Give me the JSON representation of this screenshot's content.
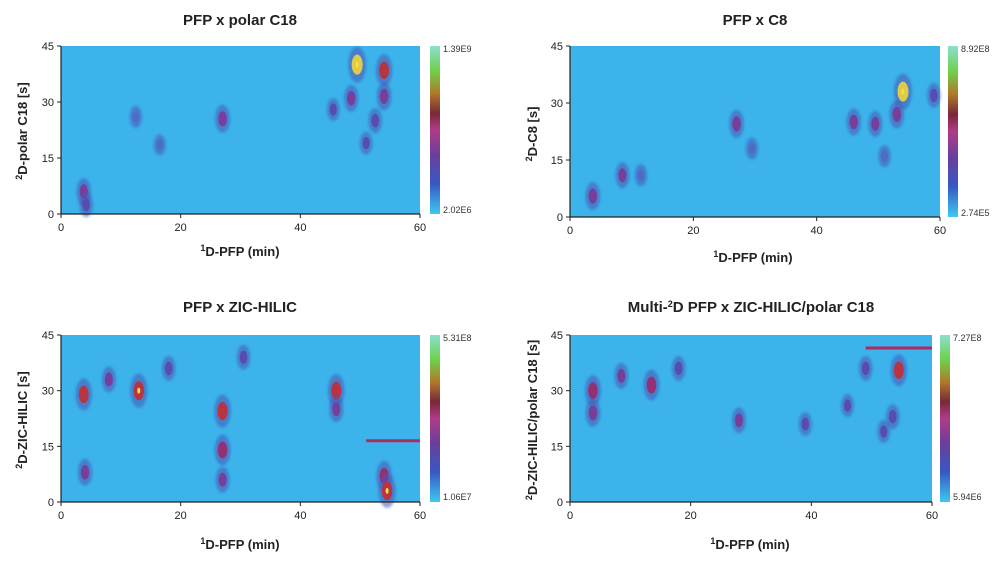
{
  "chart_data": [
    {
      "type": "heatmap",
      "title": "PFP x polar C18",
      "xlabel_sup": "1",
      "xlabel": "D-PFP (min)",
      "ylabel_sup": "2",
      "ylabel": "D-polar C18 [s]",
      "xlim": [
        0,
        60
      ],
      "ylim": [
        0,
        45
      ],
      "xticks": [
        "0",
        "20",
        "40",
        "60"
      ],
      "yticks": [
        "0",
        "15",
        "30",
        "45"
      ],
      "colorbar": {
        "max": "1.39E9",
        "min": "2.02E6"
      },
      "hot_bands": [],
      "peaks": [
        {
          "x": 3.8,
          "y": 6,
          "i": 0.55
        },
        {
          "x": 4.2,
          "y": 2.5,
          "i": 0.45
        },
        {
          "x": 12.5,
          "y": 26,
          "i": 0.3
        },
        {
          "x": 16.5,
          "y": 18.5,
          "i": 0.25
        },
        {
          "x": 27,
          "y": 25.5,
          "i": 0.6
        },
        {
          "x": 45.5,
          "y": 28,
          "i": 0.35
        },
        {
          "x": 48.5,
          "y": 31,
          "i": 0.55
        },
        {
          "x": 49.5,
          "y": 40,
          "i": 1.0
        },
        {
          "x": 54,
          "y": 38.5,
          "i": 0.8
        },
        {
          "x": 54,
          "y": 31.5,
          "i": 0.6
        },
        {
          "x": 52.5,
          "y": 25,
          "i": 0.45
        },
        {
          "x": 51,
          "y": 19,
          "i": 0.35
        }
      ]
    },
    {
      "type": "heatmap",
      "title": "PFP x C8",
      "xlabel_sup": "1",
      "xlabel": "D-PFP (min)",
      "ylabel_sup": "2",
      "ylabel": "D-C8 [s]",
      "xlim": [
        0,
        60
      ],
      "ylim": [
        0,
        45
      ],
      "xticks": [
        "0",
        "20",
        "40",
        "60"
      ],
      "yticks": [
        "0",
        "15",
        "30",
        "45"
      ],
      "colorbar": {
        "max": "8.92E8",
        "min": "2.74E5"
      },
      "hot_bands": [],
      "peaks": [
        {
          "x": 3.7,
          "y": 5.5,
          "i": 0.6
        },
        {
          "x": 8.5,
          "y": 11,
          "i": 0.5
        },
        {
          "x": 11.5,
          "y": 11,
          "i": 0.3
        },
        {
          "x": 27,
          "y": 24.5,
          "i": 0.6
        },
        {
          "x": 29.5,
          "y": 18,
          "i": 0.3
        },
        {
          "x": 46,
          "y": 25,
          "i": 0.55
        },
        {
          "x": 49.5,
          "y": 24.5,
          "i": 0.5
        },
        {
          "x": 54,
          "y": 33,
          "i": 1.0
        },
        {
          "x": 53,
          "y": 27,
          "i": 0.6
        },
        {
          "x": 59,
          "y": 32,
          "i": 0.45
        },
        {
          "x": 51,
          "y": 16,
          "i": 0.3
        }
      ]
    },
    {
      "type": "heatmap",
      "title": "PFP x ZIC-HILIC",
      "xlabel_sup": "1",
      "xlabel": "D-PFP (min)",
      "ylabel_sup": "2",
      "ylabel": "D-ZIC-HILIC [s]",
      "xlim": [
        0,
        60
      ],
      "ylim": [
        0,
        45
      ],
      "xticks": [
        "0",
        "20",
        "40",
        "60"
      ],
      "yticks": [
        "0",
        "15",
        "30",
        "45"
      ],
      "colorbar": {
        "max": "5.31E8",
        "min": "1.06E7"
      },
      "hot_bands": [
        {
          "x0": 51,
          "x1": 60,
          "y": 16.5
        }
      ],
      "peaks": [
        {
          "x": 3.8,
          "y": 29,
          "i": 0.8
        },
        {
          "x": 4,
          "y": 8,
          "i": 0.55
        },
        {
          "x": 8,
          "y": 33,
          "i": 0.5
        },
        {
          "x": 13,
          "y": 30,
          "i": 0.9
        },
        {
          "x": 18,
          "y": 36,
          "i": 0.45
        },
        {
          "x": 27,
          "y": 24.5,
          "i": 0.85
        },
        {
          "x": 27,
          "y": 14,
          "i": 0.75
        },
        {
          "x": 27,
          "y": 6,
          "i": 0.5
        },
        {
          "x": 30.5,
          "y": 39,
          "i": 0.45
        },
        {
          "x": 46,
          "y": 30,
          "i": 0.85
        },
        {
          "x": 46,
          "y": 25,
          "i": 0.5
        },
        {
          "x": 54,
          "y": 7,
          "i": 0.7
        },
        {
          "x": 54.5,
          "y": 3,
          "i": 0.9
        }
      ]
    },
    {
      "type": "heatmap",
      "title": "Multi-",
      "title_sup": "2",
      "title_tail": "D PFP x ZIC-HILIC/polar C18",
      "xlabel_sup": "1",
      "xlabel": "D-PFP (min)",
      "ylabel_sup": "2",
      "ylabel": "D-ZIC-HILIC/polar C18 [s]",
      "xlim": [
        0,
        60
      ],
      "ylim": [
        0,
        45
      ],
      "xticks": [
        "0",
        "20",
        "40",
        "60"
      ],
      "yticks": [
        "0",
        "15",
        "30",
        "45"
      ],
      "colorbar": {
        "max": "7.27E8",
        "min": "5.94E6"
      },
      "hot_bands": [
        {
          "x0": 49,
          "x1": 60,
          "y": 41.5
        }
      ],
      "peaks": [
        {
          "x": 3.8,
          "y": 30,
          "i": 0.75
        },
        {
          "x": 3.8,
          "y": 24,
          "i": 0.6
        },
        {
          "x": 8.5,
          "y": 34,
          "i": 0.5
        },
        {
          "x": 13.5,
          "y": 31.5,
          "i": 0.75
        },
        {
          "x": 18,
          "y": 36,
          "i": 0.45
        },
        {
          "x": 28,
          "y": 22,
          "i": 0.5
        },
        {
          "x": 39,
          "y": 21,
          "i": 0.4
        },
        {
          "x": 46,
          "y": 26,
          "i": 0.35
        },
        {
          "x": 49,
          "y": 36,
          "i": 0.45
        },
        {
          "x": 54.5,
          "y": 35.5,
          "i": 0.8
        },
        {
          "x": 53.5,
          "y": 23,
          "i": 0.45
        },
        {
          "x": 52,
          "y": 19,
          "i": 0.35
        }
      ]
    }
  ]
}
